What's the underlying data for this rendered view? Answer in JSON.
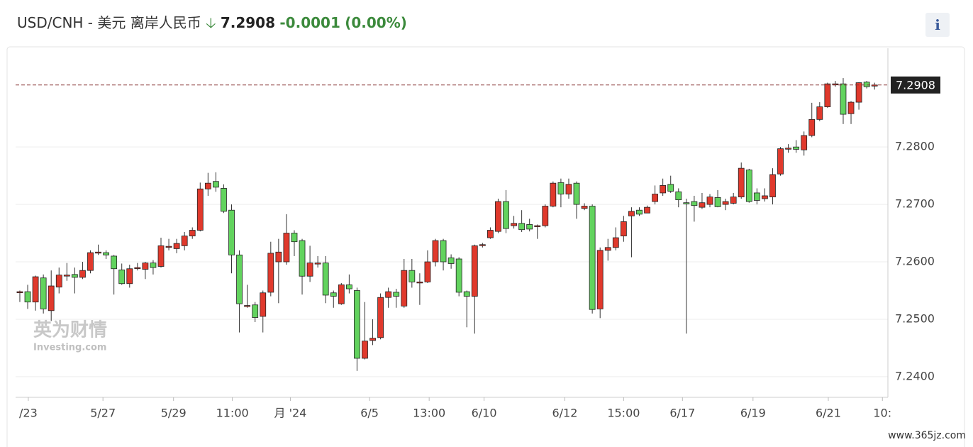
{
  "header": {
    "title": "USD/CNH - 美元 离岸人民币",
    "price": "7.2908",
    "change": "-0.0001",
    "change_pct": "(0.00%)",
    "info": "i"
  },
  "watermark": {
    "cn": "英为财情",
    "en": "Investing.com",
    "site": "www.365jz.com"
  },
  "chart_data": {
    "type": "candlestick",
    "x": [
      0,
      1,
      2,
      3,
      4,
      5,
      6,
      7,
      8,
      9,
      10,
      11,
      12,
      13,
      14,
      15,
      16,
      17,
      18,
      19,
      20,
      21,
      22,
      23,
      24,
      25,
      26,
      27,
      28,
      29,
      30,
      31,
      32,
      33,
      34,
      35,
      36,
      37,
      38,
      39,
      40,
      41,
      42,
      43,
      44,
      45,
      46,
      47,
      48,
      49,
      50,
      51,
      52,
      53,
      54,
      55,
      56,
      57,
      58,
      59,
      60,
      61,
      62,
      63,
      64,
      65,
      66,
      67,
      68,
      69,
      70,
      71,
      72,
      73,
      74,
      75,
      76,
      77,
      78,
      79,
      80,
      81,
      82,
      83,
      84,
      85,
      86,
      87,
      88,
      89,
      90,
      91,
      92,
      93,
      94,
      95,
      96,
      97,
      98,
      99,
      100,
      101,
      102,
      103,
      104,
      105,
      106,
      107,
      108,
      109
    ],
    "open": [
      7.2547,
      7.2548,
      7.253,
      7.2572,
      7.2515,
      7.2556,
      7.2577,
      7.2578,
      7.2573,
      7.2585,
      7.2617,
      7.2616,
      7.261,
      7.2586,
      7.2562,
      7.259,
      7.2587,
      7.2598,
      7.2592,
      7.2627,
      7.2623,
      7.2628,
      7.2645,
      7.2655,
      7.2727,
      7.274,
      7.2728,
      7.269,
      7.2612,
      7.2524,
      7.2525,
      7.2505,
      7.2547,
      7.26,
      7.26,
      7.265,
      7.2637,
      7.2575,
      7.2598,
      7.2598,
      7.2546,
      7.2527,
      7.256,
      7.255,
      7.2432,
      7.2463,
      7.2468,
      7.2538,
      7.2547,
      7.2523,
      7.2585,
      7.2565,
      7.2565,
      7.26,
      7.2637,
      7.2607,
      7.2605,
      7.2548,
      7.254,
      7.263,
      7.2642,
      7.2653,
      7.2705,
      7.2663,
      7.2667,
      7.2665,
      7.2663,
      7.2663,
      7.2697,
      7.2738,
      7.2718,
      7.2737,
      7.2693,
      7.2697,
      7.2518,
      7.262,
      7.2625,
      7.2645,
      7.268,
      7.269,
      7.2685,
      7.2705,
      7.272,
      7.2735,
      7.2722,
      7.2703,
      7.2705,
      7.2695,
      7.27,
      7.2712,
      7.27,
      7.2702,
      7.2713,
      7.276,
      7.272,
      7.271,
      7.2713,
      7.2753,
      7.2798,
      7.28,
      7.2795,
      7.282,
      7.2848,
      7.287,
      7.291,
      7.291,
      7.2858,
      7.2878,
      7.2913,
      7.2908
    ],
    "high": [
      7.255,
      7.256,
      7.2576,
      7.2578,
      7.2585,
      7.259,
      7.2598,
      7.259,
      7.26,
      7.262,
      7.263,
      7.262,
      7.2612,
      7.2597,
      7.2595,
      7.2598,
      7.26,
      7.2603,
      7.2642,
      7.264,
      7.264,
      7.2652,
      7.266,
      7.2738,
      7.2755,
      7.2756,
      7.2735,
      7.27,
      7.262,
      7.256,
      7.253,
      7.255,
      7.2635,
      7.264,
      7.2683,
      7.2655,
      7.264,
      7.2628,
      7.261,
      7.261,
      7.255,
      7.2563,
      7.2578,
      7.2555,
      7.253,
      7.25,
      7.2545,
      7.2555,
      7.2553,
      7.2605,
      7.2605,
      7.258,
      7.262,
      7.264,
      7.264,
      7.2613,
      7.2608,
      7.255,
      7.263,
      7.2633,
      7.266,
      7.271,
      7.2725,
      7.268,
      7.269,
      7.2675,
      7.2665,
      7.27,
      7.274,
      7.2745,
      7.2745,
      7.274,
      7.2702,
      7.27,
      7.2625,
      7.264,
      7.266,
      7.268,
      7.2695,
      7.2695,
      7.2698,
      7.2733,
      7.2745,
      7.275,
      7.2728,
      7.271,
      7.2715,
      7.272,
      7.2718,
      7.2725,
      7.271,
      7.272,
      7.2773,
      7.2762,
      7.2728,
      7.2728,
      7.2763,
      7.28,
      7.2805,
      7.2812,
      7.2827,
      7.2877,
      7.2878,
      7.2912,
      7.2915,
      7.292,
      7.288,
      7.2913,
      7.2915,
      7.2912
    ],
    "low": [
      7.253,
      7.2518,
      7.2515,
      7.251,
      7.2497,
      7.2545,
      7.2567,
      7.2545,
      7.257,
      7.258,
      7.2612,
      7.2605,
      7.2543,
      7.256,
      7.2555,
      7.2585,
      7.257,
      7.2578,
      7.259,
      7.262,
      7.2615,
      7.262,
      7.264,
      7.2653,
      7.2715,
      7.2722,
      7.2685,
      7.258,
      7.2477,
      7.252,
      7.2495,
      7.2477,
      7.254,
      7.2528,
      7.2595,
      7.261,
      7.2543,
      7.2565,
      7.259,
      7.2528,
      7.252,
      7.2525,
      7.2545,
      7.241,
      7.243,
      7.2455,
      7.2465,
      7.252,
      7.252,
      7.252,
      7.2555,
      7.2525,
      7.2563,
      7.2592,
      7.2585,
      7.2588,
      7.254,
      7.2486,
      7.2475,
      7.2625,
      7.264,
      7.265,
      7.265,
      7.2658,
      7.2652,
      7.2653,
      7.264,
      7.266,
      7.2695,
      7.2695,
      7.271,
      7.2675,
      7.269,
      7.251,
      7.2502,
      7.2602,
      7.262,
      7.2635,
      7.2608,
      7.268,
      7.269,
      7.27,
      7.2715,
      7.272,
      7.2695,
      7.2475,
      7.267,
      7.2692,
      7.2695,
      7.2695,
      7.269,
      7.27,
      7.271,
      7.2703,
      7.27,
      7.2705,
      7.27,
      7.275,
      7.279,
      7.279,
      7.2785,
      7.2817,
      7.2845,
      7.2868,
      7.2905,
      7.284,
      7.284,
      7.2865,
      7.2902,
      7.29
    ],
    "close": [
      7.2548,
      7.253,
      7.2574,
      7.2518,
      7.2558,
      7.2577,
      7.2577,
      7.2573,
      7.2585,
      7.2616,
      7.2617,
      7.2612,
      7.2588,
      7.2562,
      7.2588,
      7.259,
      7.2598,
      7.259,
      7.2628,
      7.2627,
      7.2632,
      7.2645,
      7.2655,
      7.2727,
      7.2737,
      7.273,
      7.2688,
      7.2612,
      7.2527,
      7.2524,
      7.2503,
      7.2546,
      7.2615,
      7.2617,
      7.265,
      7.2635,
      7.2575,
      7.2598,
      7.2598,
      7.2542,
      7.254,
      7.256,
      7.2553,
      7.2432,
      7.2462,
      7.2467,
      7.2538,
      7.2548,
      7.254,
      7.2585,
      7.2565,
      7.2565,
      7.26,
      7.2637,
      7.26,
      7.2597,
      7.2547,
      7.254,
      7.2628,
      7.263,
      7.2655,
      7.2705,
      7.2658,
      7.2667,
      7.2656,
      7.2657,
      7.2663,
      7.2697,
      7.2737,
      7.2718,
      7.2735,
      7.27,
      7.2697,
      7.2517,
      7.262,
      7.2625,
      7.2642,
      7.267,
      7.2688,
      7.2683,
      7.2695,
      7.2718,
      7.2733,
      7.2723,
      7.2708,
      7.2701,
      7.2698,
      7.2703,
      7.2713,
      7.2696,
      7.2705,
      7.2713,
      7.2763,
      7.2705,
      7.2707,
      7.2715,
      7.2752,
      7.2797,
      7.2798,
      7.2796,
      7.282,
      7.2848,
      7.287,
      7.291,
      7.291,
      7.2857,
      7.2878,
      7.2912,
      7.2905,
      7.2908
    ],
    "up_color": "#e0392c",
    "down_color": "#62d35e",
    "xlim": [
      -0.54,
      110.7
    ],
    "ylim": [
      7.2364,
      7.2972
    ],
    "xticks": [
      {
        "value": 1.08,
        "label": "/23"
      },
      {
        "value": 10.6,
        "label": "5/27"
      },
      {
        "value": 19.6,
        "label": "5/29"
      },
      {
        "value": 27.1,
        "label": "11:00"
      },
      {
        "value": 34.5,
        "label": "月 '24"
      },
      {
        "value": 44.6,
        "label": "6/5"
      },
      {
        "value": 52.2,
        "label": "13:00"
      },
      {
        "value": 59.2,
        "label": "6/10"
      },
      {
        "value": 69.5,
        "label": "6/12"
      },
      {
        "value": 77.0,
        "label": "15:00"
      },
      {
        "value": 84.5,
        "label": "6/17"
      },
      {
        "value": 93.5,
        "label": "6/19"
      },
      {
        "value": 103.1,
        "label": "6/21"
      },
      {
        "value": 110.0,
        "label": "10:"
      }
    ],
    "yticks": [
      {
        "value": 7.24,
        "label": "7.2400"
      },
      {
        "value": 7.25,
        "label": "7.2500"
      },
      {
        "value": 7.26,
        "label": "7.2600"
      },
      {
        "value": 7.27,
        "label": "7.2700"
      },
      {
        "value": 7.28,
        "label": "7.2800"
      }
    ],
    "last_price": {
      "value": 7.2908,
      "label": "7.2908"
    },
    "grid": true
  }
}
